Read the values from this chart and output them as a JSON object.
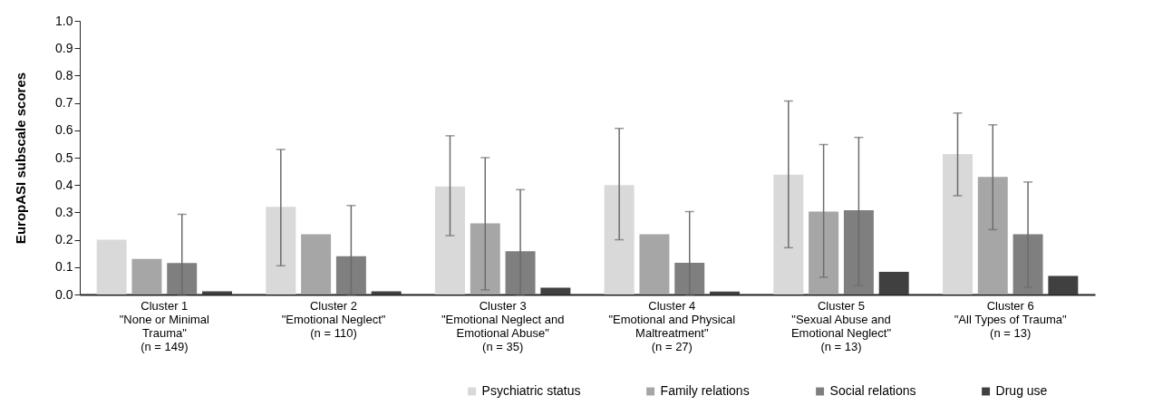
{
  "chart_data": {
    "type": "bar",
    "ylabel": "EuropASI subscale scores",
    "categories": [
      "Cluster 1\n\"None or Minimal\nTrauma\"\n(n = 149)",
      "Cluster 2\n\"Emotional Neglect\"\n(n = 110)",
      "Cluster 3\n\"Emotional Neglect and\nEmotional Abuse\"\n(n = 35)",
      "Cluster 4\n\"Emotional and Physical\nMaltreatment\"\n(n = 27)",
      "Cluster 5\n\"Sexual Abuse and\nEmotional Neglect\"\n(n = 13)",
      "Cluster 6\n\"All Types of Trauma\"\n(n = 13)"
    ],
    "series": [
      {
        "name": "Psychiatric status",
        "color": "#d9d9d9",
        "values": [
          0.2,
          0.32,
          0.395,
          0.4,
          0.438,
          0.513
        ],
        "errors": [
          null,
          [
            0.105,
            0.53
          ],
          [
            0.215,
            0.58
          ],
          [
            0.2,
            0.607
          ],
          [
            0.171,
            0.707
          ],
          [
            0.361,
            0.663
          ]
        ]
      },
      {
        "name": "Family relations",
        "color": "#a6a6a6",
        "values": [
          0.13,
          0.22,
          0.26,
          0.22,
          0.303,
          0.43
        ],
        "errors": [
          null,
          null,
          [
            0.017,
            0.5
          ],
          null,
          [
            0.063,
            0.548
          ],
          [
            0.237,
            0.62
          ]
        ]
      },
      {
        "name": "Social relations",
        "color": "#7f7f7f",
        "values": [
          0.115,
          0.14,
          0.158,
          0.116,
          0.308,
          0.22
        ],
        "errors": [
          [
            0,
            0.293
          ],
          [
            0,
            0.325
          ],
          [
            0,
            0.383
          ],
          [
            0,
            0.303
          ],
          [
            0.033,
            0.574
          ],
          [
            0.027,
            0.411
          ]
        ]
      },
      {
        "name": "Drug use",
        "color": "#404040",
        "values": [
          0.012,
          0.012,
          0.025,
          0.011,
          0.083,
          0.068
        ]
      }
    ],
    "ylim": [
      0,
      1
    ],
    "yticks": [
      {
        "value": 0,
        "label": "0.0"
      },
      0.1,
      0.2,
      0.3,
      0.4,
      0.5,
      0.6,
      0.7,
      0.8,
      0.9,
      {
        "value": 1,
        "label": "1.0"
      }
    ],
    "grid": false,
    "legend": "bottom"
  }
}
